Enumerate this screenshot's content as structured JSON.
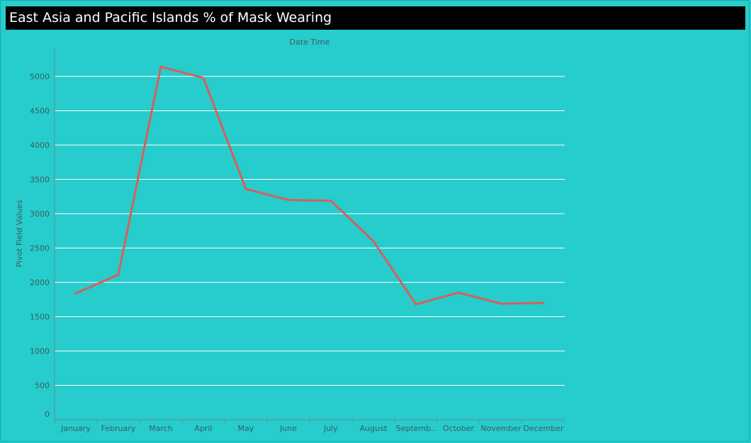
{
  "page": {
    "title": "East Asia and Pacific Islands % of Mask Wearing"
  },
  "colors": {
    "background": "#27cccc",
    "title_bar": "#000000",
    "line": "#d6605a",
    "grid": "#ffffff"
  },
  "chart_data": {
    "type": "line",
    "title": "",
    "xlabel": "Date Time",
    "ylabel": "Pivot Field Values",
    "categories": [
      "January",
      "February",
      "March",
      "April",
      "May",
      "June",
      "July",
      "August",
      "September",
      "October",
      "November",
      "December"
    ],
    "category_labels": [
      "January",
      "February",
      "March",
      "April",
      "May",
      "June",
      "July",
      "August",
      "Septemb..",
      "October",
      "November",
      "December"
    ],
    "values": [
      1840,
      2110,
      5140,
      4980,
      3360,
      3200,
      3190,
      2600,
      1680,
      1850,
      1690,
      1700
    ],
    "ylim": [
      0,
      5200
    ],
    "yticks": [
      0,
      500,
      1000,
      1500,
      2000,
      2500,
      3000,
      3500,
      4000,
      4500,
      5000
    ],
    "grid": true,
    "legend": "none"
  }
}
